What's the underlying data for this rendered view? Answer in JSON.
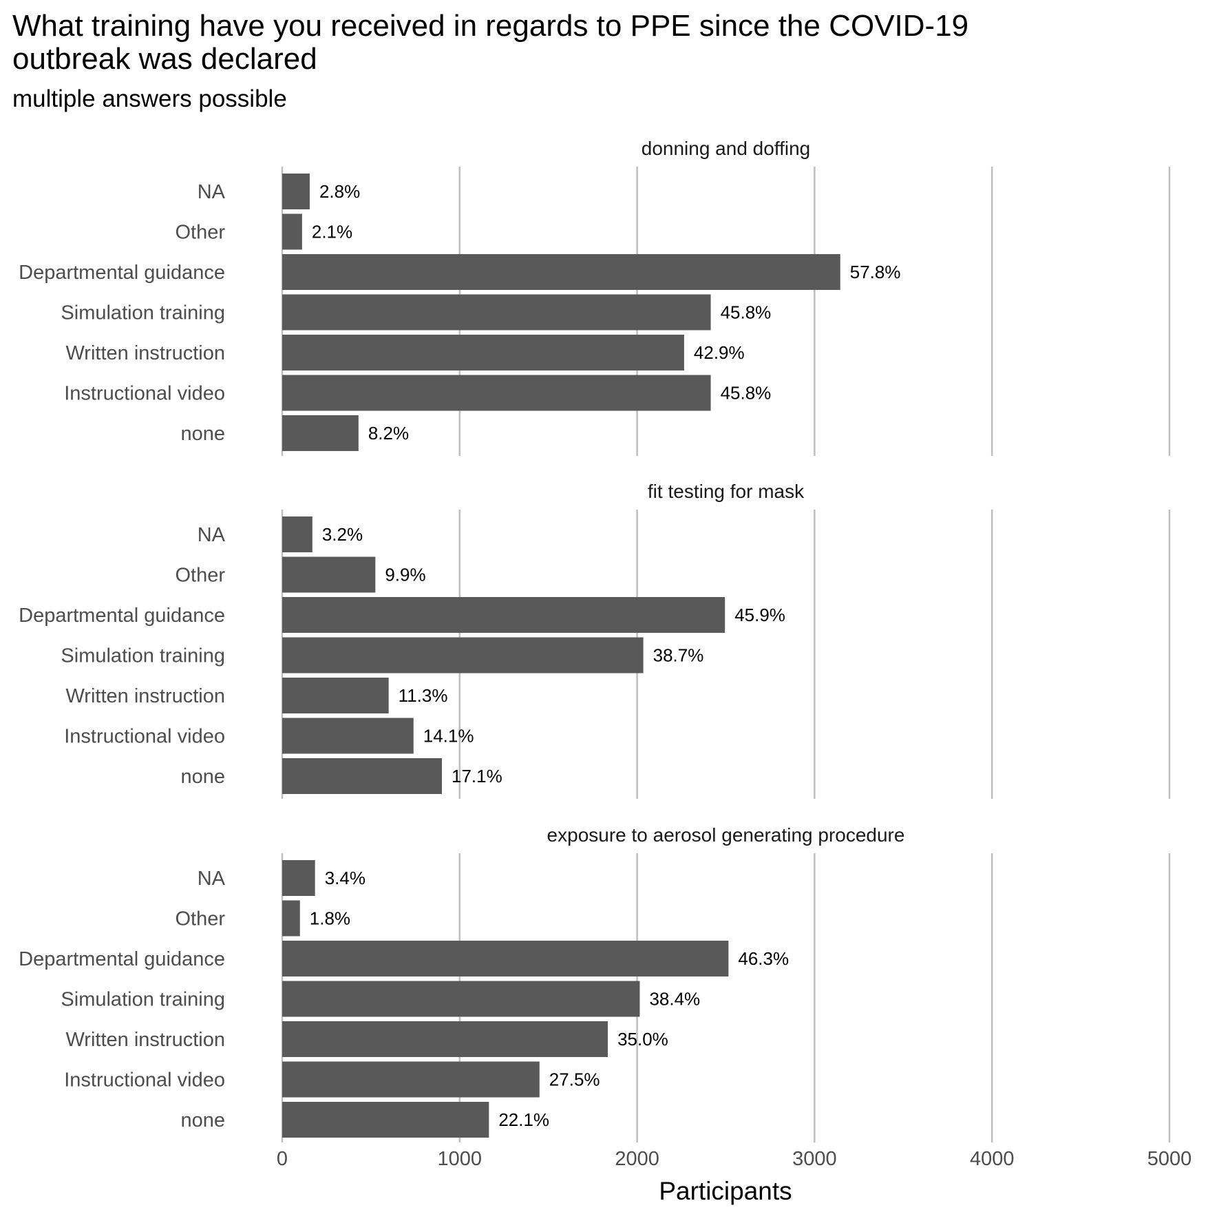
{
  "chart_data": {
    "type": "bar",
    "orientation": "horizontal",
    "title_lines": [
      "What training have you received in regards to PPE since the COVID-19",
      "outbreak was declared"
    ],
    "subtitle": "multiple answers possible",
    "xlabel": "Participants",
    "ylabel": "",
    "xlim": [
      0,
      5000
    ],
    "x_ticks": [
      0,
      1000,
      2000,
      3000,
      4000,
      5000
    ],
    "grid": "vertical major lines",
    "categories": [
      "NA",
      "Other",
      "Departmental guidance",
      "Simulation training",
      "Written instruction",
      "Instructional video",
      "none"
    ],
    "panels": [
      {
        "name": "donning and doffing",
        "values": [
          155,
          112,
          3145,
          2415,
          2265,
          2415,
          430
        ],
        "labels": [
          "2.8%",
          "2.1%",
          "57.8%",
          "45.8%",
          "42.9%",
          "45.8%",
          "8.2%"
        ]
      },
      {
        "name": "fit testing for mask",
        "values": [
          170,
          525,
          2495,
          2035,
          600,
          740,
          900
        ],
        "labels": [
          "3.2%",
          "9.9%",
          "45.9%",
          "38.7%",
          "11.3%",
          "14.1%",
          "17.1%"
        ]
      },
      {
        "name": "exposure to aerosol generating procedure",
        "values": [
          185,
          100,
          2515,
          2015,
          1835,
          1450,
          1165
        ],
        "labels": [
          "3.4%",
          "1.8%",
          "46.3%",
          "38.4%",
          "35.0%",
          "27.5%",
          "22.1%"
        ]
      }
    ]
  }
}
